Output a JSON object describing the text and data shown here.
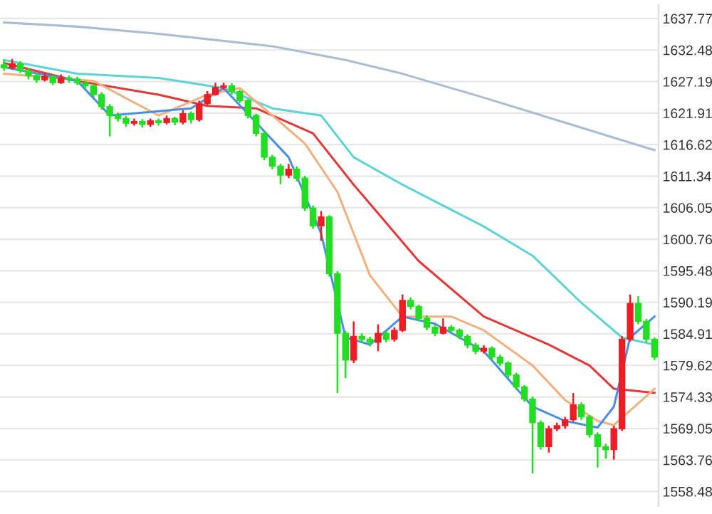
{
  "chart_data": {
    "type": "candlestick",
    "categories": [
      null,
      null,
      null,
      null,
      null,
      null,
      null,
      null,
      null,
      null,
      null,
      null,
      null,
      null,
      null,
      null,
      null,
      null,
      null,
      null,
      null,
      null,
      null,
      null,
      null,
      null,
      null,
      null,
      null,
      null,
      null,
      null,
      null,
      null,
      null,
      null,
      null,
      null,
      null,
      null,
      null,
      null,
      null,
      null,
      null,
      null,
      null,
      null,
      null,
      null,
      null,
      null,
      null,
      null,
      null,
      null,
      null,
      null,
      null,
      null,
      null,
      null,
      null,
      null,
      null,
      null,
      null,
      null,
      null,
      null,
      null,
      null,
      null,
      null,
      null,
      null,
      null,
      null,
      null,
      null,
      null
    ],
    "ohlc": [
      [
        1630.0,
        1630.8,
        1629.0,
        1629.5
      ],
      [
        1629.5,
        1631.0,
        1629.2,
        1630.2
      ],
      [
        1630.2,
        1630.6,
        1628.6,
        1629.0
      ],
      [
        1629.0,
        1629.4,
        1627.6,
        1628.2
      ],
      [
        1628.2,
        1628.6,
        1627.0,
        1627.5
      ],
      [
        1627.5,
        1628.6,
        1627.2,
        1628.0
      ],
      [
        1628.0,
        1628.3,
        1626.6,
        1627.0
      ],
      [
        1627.0,
        1628.4,
        1626.8,
        1627.8
      ],
      [
        1627.8,
        1628.2,
        1627.0,
        1627.6
      ],
      [
        1627.6,
        1628.0,
        1626.6,
        1627.0
      ],
      [
        1627.0,
        1627.3,
        1626.0,
        1626.5
      ],
      [
        1626.5,
        1626.8,
        1624.6,
        1625.0
      ],
      [
        1625.0,
        1625.4,
        1622.5,
        1623.0
      ],
      [
        1623.0,
        1623.4,
        1618.0,
        1621.5
      ],
      [
        1621.5,
        1622.0,
        1620.5,
        1621.0
      ],
      [
        1621.0,
        1621.4,
        1619.6,
        1620.2
      ],
      [
        1620.2,
        1621.0,
        1619.8,
        1620.5
      ],
      [
        1620.5,
        1620.9,
        1619.5,
        1620.0
      ],
      [
        1620.0,
        1621.0,
        1619.6,
        1620.6
      ],
      [
        1620.6,
        1621.0,
        1619.8,
        1620.3
      ],
      [
        1620.3,
        1621.5,
        1620.0,
        1621.0
      ],
      [
        1621.0,
        1621.3,
        1619.9,
        1620.4
      ],
      [
        1620.4,
        1622.4,
        1620.0,
        1621.8
      ],
      [
        1621.8,
        1622.2,
        1620.2,
        1620.8
      ],
      [
        1620.8,
        1624.0,
        1620.5,
        1623.5
      ],
      [
        1623.5,
        1625.6,
        1623.2,
        1625.0
      ],
      [
        1625.0,
        1627.0,
        1624.8,
        1626.2
      ],
      [
        1626.2,
        1627.0,
        1625.8,
        1626.5
      ],
      [
        1626.5,
        1626.9,
        1625.0,
        1625.5
      ],
      [
        1625.5,
        1625.8,
        1623.6,
        1624.0
      ],
      [
        1624.0,
        1624.3,
        1621.0,
        1621.5
      ],
      [
        1621.5,
        1621.8,
        1618.0,
        1618.5
      ],
      [
        1618.5,
        1618.8,
        1614.0,
        1614.5
      ],
      [
        1614.5,
        1614.9,
        1612.5,
        1613.0
      ],
      [
        1613.0,
        1613.4,
        1610.0,
        1611.5
      ],
      [
        1611.5,
        1613.4,
        1611.0,
        1612.5
      ],
      [
        1612.5,
        1613.0,
        1610.5,
        1611.0
      ],
      [
        1611.0,
        1611.4,
        1605.5,
        1606.0
      ],
      [
        1606.0,
        1606.4,
        1602.5,
        1603.0
      ],
      [
        1603.0,
        1605.5,
        1600.5,
        1604.5
      ],
      [
        1604.5,
        1604.8,
        1594.5,
        1595.0
      ],
      [
        1595.0,
        1595.4,
        1575.0,
        1585.0
      ],
      [
        1585.0,
        1585.4,
        1577.5,
        1580.5
      ],
      [
        1580.5,
        1587.0,
        1580.0,
        1584.5
      ],
      [
        1584.5,
        1585.0,
        1583.5,
        1584.0
      ],
      [
        1584.0,
        1584.4,
        1582.8,
        1583.5
      ],
      [
        1583.5,
        1586.5,
        1582.0,
        1585.0
      ],
      [
        1585.0,
        1585.4,
        1583.5,
        1584.0
      ],
      [
        1584.0,
        1586.0,
        1583.6,
        1585.5
      ],
      [
        1585.5,
        1591.5,
        1585.2,
        1590.5
      ],
      [
        1590.5,
        1591.0,
        1589.0,
        1589.5
      ],
      [
        1589.5,
        1589.8,
        1587.0,
        1587.5
      ],
      [
        1587.5,
        1588.0,
        1585.5,
        1586.0
      ],
      [
        1586.0,
        1586.4,
        1584.5,
        1585.0
      ],
      [
        1585.0,
        1587.5,
        1584.8,
        1586.0
      ],
      [
        1586.0,
        1586.4,
        1585.0,
        1585.5
      ],
      [
        1585.5,
        1585.8,
        1584.0,
        1584.5
      ],
      [
        1584.5,
        1584.8,
        1582.5,
        1583.0
      ],
      [
        1583.0,
        1583.4,
        1581.5,
        1582.0
      ],
      [
        1582.0,
        1583.0,
        1581.6,
        1582.5
      ],
      [
        1582.5,
        1582.8,
        1580.5,
        1581.0
      ],
      [
        1581.0,
        1581.4,
        1579.5,
        1580.0
      ],
      [
        1580.0,
        1580.3,
        1577.5,
        1578.0
      ],
      [
        1578.0,
        1578.4,
        1575.5,
        1576.0
      ],
      [
        1576.0,
        1576.3,
        1573.5,
        1574.0
      ],
      [
        1574.0,
        1574.4,
        1561.5,
        1570.0
      ],
      [
        1570.0,
        1570.4,
        1565.5,
        1566.0
      ],
      [
        1566.0,
        1569.5,
        1565.0,
        1569.0
      ],
      [
        1569.0,
        1570.0,
        1568.6,
        1569.5
      ],
      [
        1569.5,
        1571.0,
        1569.0,
        1570.5
      ],
      [
        1570.5,
        1575.0,
        1570.2,
        1573.0
      ],
      [
        1573.0,
        1573.4,
        1570.5,
        1571.0
      ],
      [
        1571.0,
        1571.3,
        1567.5,
        1568.0
      ],
      [
        1568.0,
        1568.4,
        1562.5,
        1566.0
      ],
      [
        1566.0,
        1566.5,
        1564.0,
        1565.5
      ],
      [
        1565.5,
        1569.5,
        1563.8,
        1569.0
      ],
      [
        1569.0,
        1584.5,
        1568.6,
        1584.0
      ],
      [
        1584.0,
        1591.5,
        1583.6,
        1590.0
      ],
      [
        1590.0,
        1591.2,
        1586.5,
        1587.0
      ],
      [
        1587.0,
        1587.4,
        1583.5,
        1584.0
      ],
      [
        1584.0,
        1584.3,
        1580.5,
        1581.0
      ]
    ],
    "series": [
      {
        "type": "line",
        "color": "#a9bcd0",
        "values": [
          1637.1,
          null,
          null,
          null,
          null,
          null,
          null,
          null,
          null,
          1636.4,
          null,
          null,
          null,
          null,
          null,
          null,
          null,
          null,
          null,
          1635.2,
          null,
          null,
          null,
          null,
          null,
          null,
          null,
          null,
          null,
          null,
          null,
          null,
          null,
          1633.1,
          null,
          null,
          null,
          null,
          null,
          null,
          null,
          null,
          1630.8,
          null,
          null,
          null,
          null,
          null,
          null,
          1628.5,
          null,
          null,
          null,
          null,
          null,
          null,
          null,
          null,
          null,
          1624.5,
          null,
          null,
          null,
          null,
          null,
          null,
          null,
          null,
          null,
          1620.3,
          null,
          null,
          null,
          null,
          null,
          null,
          null,
          null,
          null,
          1616.1,
          1615.7
        ]
      },
      {
        "type": "line",
        "color": "#5fd3d3",
        "values": [
          1630.8,
          null,
          null,
          null,
          null,
          null,
          null,
          null,
          null,
          1628.5,
          null,
          null,
          null,
          null,
          null,
          null,
          null,
          null,
          null,
          1627.8,
          null,
          null,
          null,
          null,
          null,
          null,
          null,
          1626.1,
          null,
          null,
          null,
          null,
          null,
          1622.7,
          null,
          null,
          null,
          null,
          null,
          1621.5,
          null,
          null,
          null,
          1614.5,
          null,
          null,
          null,
          null,
          null,
          1609.9,
          null,
          null,
          null,
          null,
          null,
          null,
          null,
          null,
          null,
          1602.9,
          null,
          null,
          null,
          null,
          null,
          1598.0,
          null,
          null,
          null,
          null,
          null,
          1590.1,
          null,
          null,
          null,
          null,
          1584.3,
          null,
          null,
          null,
          1583.1
        ]
      },
      {
        "type": "line",
        "color": "#e03a3a",
        "values": [
          1630.3,
          null,
          null,
          null,
          null,
          null,
          null,
          null,
          null,
          1627.3,
          null,
          null,
          null,
          null,
          null,
          null,
          null,
          null,
          null,
          1625.0,
          null,
          null,
          null,
          null,
          null,
          1623.1,
          null,
          null,
          null,
          null,
          null,
          1622.7,
          null,
          null,
          null,
          null,
          null,
          null,
          1618.5,
          null,
          null,
          null,
          null,
          1609.9,
          null,
          null,
          null,
          null,
          null,
          null,
          null,
          1597.1,
          null,
          null,
          null,
          null,
          null,
          null,
          null,
          1587.8,
          null,
          null,
          null,
          null,
          null,
          null,
          null,
          1583.1,
          null,
          null,
          null,
          null,
          1579.6,
          null,
          null,
          1575.7,
          null,
          null,
          null,
          null,
          1575.0
        ]
      },
      {
        "type": "line",
        "color": "#f0b080",
        "values": [
          1628.5,
          null,
          null,
          null,
          null,
          null,
          null,
          null,
          null,
          null,
          null,
          1627.3,
          null,
          null,
          null,
          null,
          null,
          null,
          null,
          1621.5,
          null,
          null,
          null,
          null,
          null,
          1625.0,
          null,
          null,
          null,
          1626.1,
          null,
          null,
          null,
          1621.5,
          null,
          null,
          null,
          1616.8,
          null,
          null,
          null,
          1608.7,
          null,
          null,
          null,
          1594.7,
          null,
          null,
          null,
          1587.8,
          null,
          null,
          null,
          null,
          null,
          1587.8,
          null,
          null,
          null,
          1585.5,
          null,
          null,
          null,
          null,
          null,
          1579.6,
          null,
          null,
          null,
          1573.8,
          null,
          null,
          null,
          1570.3,
          null,
          1569.6,
          null,
          null,
          null,
          null,
          1575.7
        ]
      },
      {
        "type": "line",
        "color": "#4a90e2",
        "values": [
          1629.6,
          null,
          null,
          null,
          null,
          null,
          null,
          null,
          null,
          1627.3,
          null,
          null,
          null,
          1621.5,
          null,
          null,
          null,
          null,
          null,
          null,
          null,
          null,
          null,
          1622.7,
          null,
          null,
          null,
          1626.1,
          null,
          null,
          null,
          1620.3,
          null,
          null,
          null,
          1614.5,
          null,
          null,
          null,
          1601.7,
          null,
          null,
          1584.3,
          null,
          null,
          1583.1,
          null,
          null,
          null,
          1587.8,
          null,
          null,
          null,
          1586.6,
          null,
          null,
          null,
          null,
          null,
          1582.0,
          null,
          null,
          null,
          null,
          null,
          1572.7,
          null,
          null,
          null,
          1570.3,
          null,
          null,
          null,
          1569.2,
          null,
          1572.7,
          null,
          1584.3,
          null,
          null,
          1587.8
        ]
      }
    ],
    "ylim": [
      1556,
      1640
    ],
    "yticks": [
      1637.77,
      1632.48,
      1627.19,
      1621.91,
      1616.62,
      1611.34,
      1606.05,
      1600.76,
      1595.48,
      1590.19,
      1584.91,
      1579.62,
      1574.33,
      1569.05,
      1563.76,
      1558.48
    ],
    "grid": "y",
    "tick_labels": "y",
    "legend": false
  }
}
